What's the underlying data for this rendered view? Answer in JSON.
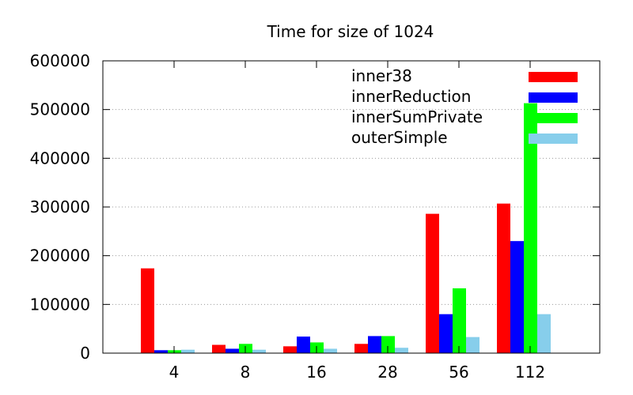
{
  "chart_data": {
    "type": "bar",
    "title": "Time for size of 1024",
    "xlabel": "",
    "ylabel": "",
    "categories": [
      "4",
      "8",
      "16",
      "28",
      "56",
      "112"
    ],
    "ylim": [
      0,
      600000
    ],
    "yticks": [
      0,
      100000,
      200000,
      300000,
      400000,
      500000,
      600000
    ],
    "ytick_labels": [
      "0",
      "100000",
      "200000",
      "300000",
      "400000",
      "500000",
      "600000"
    ],
    "grid": "horizontal dotted",
    "legend_position": "top-right",
    "series": [
      {
        "name": "inner38",
        "color": "#ff0000",
        "values": [
          174000,
          17000,
          14000,
          19000,
          286000,
          307000
        ]
      },
      {
        "name": "innerReduction",
        "color": "#0000ff",
        "values": [
          6000,
          9000,
          34000,
          35000,
          80000,
          230000
        ]
      },
      {
        "name": "innerSumPrivate",
        "color": "#00ff00",
        "values": [
          6000,
          19000,
          22000,
          35000,
          133000,
          513000
        ]
      },
      {
        "name": "outerSimple",
        "color": "#87ceeb",
        "values": [
          7000,
          7000,
          9000,
          11000,
          33000,
          80000
        ]
      }
    ]
  }
}
